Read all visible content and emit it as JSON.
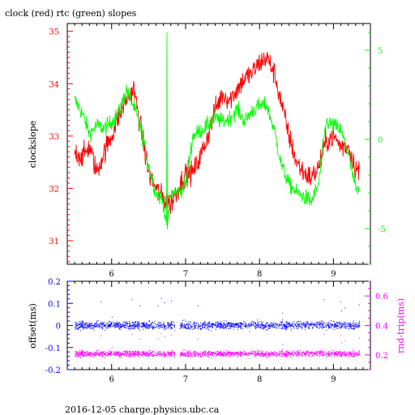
{
  "title": "clock (red) rtc (green) slopes",
  "footer": "2016-12-05  charge.physics.ubc.ca",
  "colors": {
    "clock": "#ff0000",
    "rtc": "#00ff00",
    "offset": "#0000ff",
    "rnd": "#ff00ff",
    "axis": "#000000"
  },
  "chart_data": [
    {
      "type": "line",
      "title": "clock (red) rtc (green) slopes",
      "xlim": [
        5.4,
        9.5
      ],
      "x_ticks": [
        "6",
        "7",
        "8",
        "9"
      ],
      "ylabel": "clockslope",
      "ylim": [
        30.55,
        35.15
      ],
      "y_ticks": [
        "31",
        "32",
        "33",
        "34",
        "35"
      ],
      "y2lim": [
        -7.0,
        6.5
      ],
      "y2_ticks": [
        "-5",
        "0",
        "5"
      ],
      "series": [
        {
          "name": "clock",
          "color": "#ff0000",
          "axis": "left",
          "x": [
            5.5,
            5.6,
            5.7,
            5.8,
            5.9,
            6.0,
            6.1,
            6.2,
            6.3,
            6.4,
            6.5,
            6.6,
            6.7,
            6.8,
            6.9,
            7.0,
            7.1,
            7.2,
            7.3,
            7.4,
            7.5,
            7.6,
            7.7,
            7.8,
            7.9,
            8.0,
            8.1,
            8.2,
            8.3,
            8.4,
            8.5,
            8.6,
            8.7,
            8.8,
            8.9,
            9.0,
            9.1,
            9.2,
            9.3,
            9.35
          ],
          "values": [
            32.7,
            32.6,
            32.8,
            32.3,
            32.7,
            33.0,
            33.4,
            33.7,
            33.9,
            33.1,
            32.3,
            32.0,
            31.8,
            31.7,
            32.0,
            32.3,
            32.3,
            32.6,
            33.0,
            33.5,
            33.8,
            33.7,
            33.9,
            34.1,
            34.2,
            34.4,
            34.5,
            34.2,
            33.6,
            33.0,
            32.5,
            32.3,
            32.2,
            32.4,
            32.9,
            33.0,
            32.8,
            32.8,
            32.4,
            32.3
          ]
        },
        {
          "name": "rtc",
          "color": "#00ff00",
          "axis": "right",
          "x": [
            5.5,
            5.6,
            5.7,
            5.8,
            5.9,
            6.0,
            6.1,
            6.2,
            6.3,
            6.4,
            6.5,
            6.6,
            6.7,
            6.75,
            6.8,
            6.9,
            7.0,
            7.1,
            7.2,
            7.3,
            7.4,
            7.5,
            7.6,
            7.7,
            7.8,
            7.9,
            8.0,
            8.1,
            8.2,
            8.3,
            8.4,
            8.5,
            8.6,
            8.7,
            8.8,
            8.9,
            9.0,
            9.1,
            9.2,
            9.3,
            9.35
          ],
          "values": [
            2.2,
            1.5,
            0.3,
            0.8,
            0.6,
            1.0,
            1.5,
            2.8,
            1.8,
            0.5,
            -1.5,
            -3.0,
            -3.5,
            -5.2,
            -3.0,
            -3.0,
            -2.5,
            0.2,
            0.5,
            0.8,
            1.2,
            1.0,
            1.2,
            1.7,
            1.0,
            1.6,
            1.9,
            1.9,
            0.5,
            -1.5,
            -2.5,
            -3.0,
            -3.2,
            -3.5,
            -2.5,
            1.0,
            0.8,
            0.5,
            -0.8,
            -2.8,
            -3.0
          ]
        }
      ]
    },
    {
      "type": "scatter",
      "xlim": [
        5.4,
        9.5
      ],
      "x_ticks": [
        "6",
        "7",
        "8",
        "9"
      ],
      "ylabel": "offset(ms)",
      "ylim": [
        -0.2,
        0.2
      ],
      "y_ticks": [
        "-0.2",
        "-0.1",
        "0",
        "0.1",
        "0.2"
      ],
      "y2label": "rnd-trip(ms)",
      "y2lim": [
        0.1,
        0.7
      ],
      "y2_ticks": [
        "0.2",
        "0.4",
        "0.6"
      ],
      "gap": [
        6.85,
        6.92
      ],
      "series": [
        {
          "name": "offset",
          "color": "#0000ff",
          "axis": "left",
          "x": [
            5.5,
            9.35
          ],
          "center": 0.002,
          "spread": 0.035
        },
        {
          "name": "rnd-trip",
          "color": "#ff00ff",
          "axis": "right",
          "x": [
            5.5,
            9.35
          ],
          "center": 0.21,
          "spread": 0.04
        }
      ]
    }
  ]
}
